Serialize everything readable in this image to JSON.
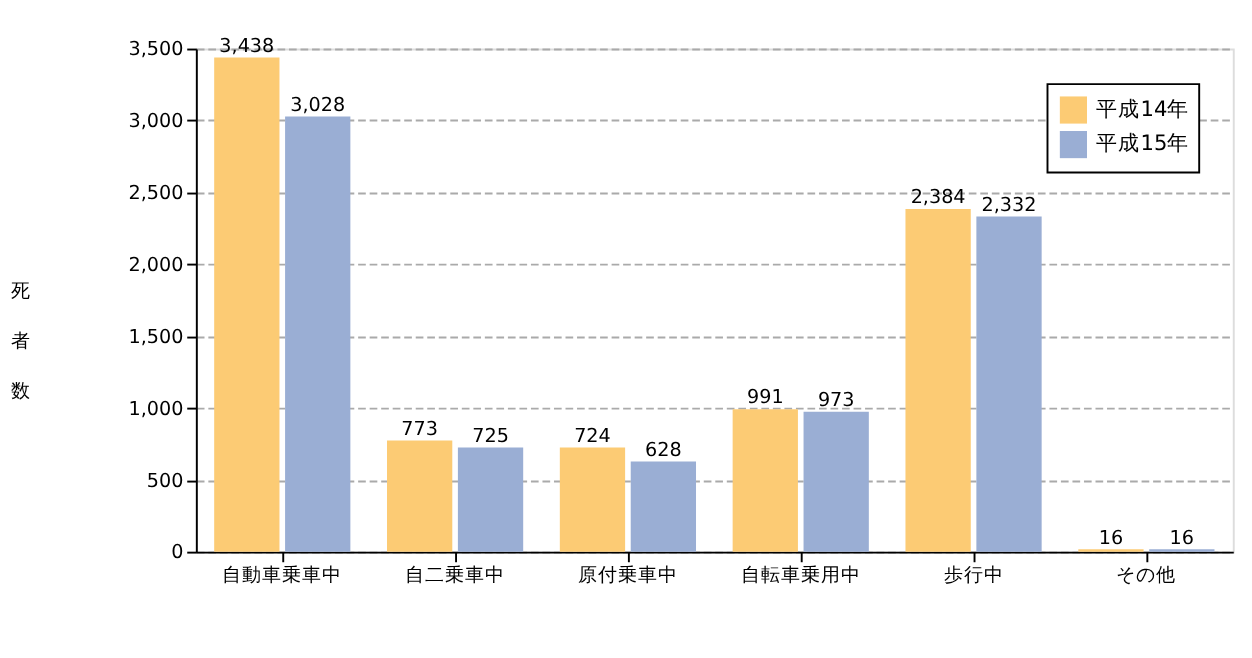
{
  "chart_data": {
    "type": "bar",
    "ylabel": "死者数",
    "categories": [
      "自動車乗車中",
      "自二乗車中",
      "原付乗車中",
      "自転車乗用中",
      "歩行中",
      "その他"
    ],
    "series": [
      {
        "name": "平成14年",
        "color": "#fccb74",
        "values": [
          3438,
          773,
          724,
          991,
          2384,
          16
        ],
        "value_labels": [
          "3,438",
          "773",
          "724",
          "991",
          "2,384",
          "16"
        ]
      },
      {
        "name": "平成15年",
        "color": "#9aaed4",
        "values": [
          3028,
          725,
          628,
          973,
          2332,
          16
        ],
        "value_labels": [
          "3,028",
          "725",
          "628",
          "973",
          "2,332",
          "16"
        ]
      }
    ],
    "ylim": [
      0,
      3500
    ],
    "yticks": [
      0,
      500,
      {
        "value": 1000,
        "label": "1,000"
      },
      {
        "value": 1500,
        "label": "1,500"
      },
      {
        "value": 2000,
        "label": "2,000"
      },
      {
        "value": 2500,
        "label": "2,500"
      },
      {
        "value": 3000,
        "label": "3,000"
      },
      {
        "value": 3500,
        "label": "3,500"
      }
    ],
    "grid": "y",
    "legend": "top right"
  }
}
